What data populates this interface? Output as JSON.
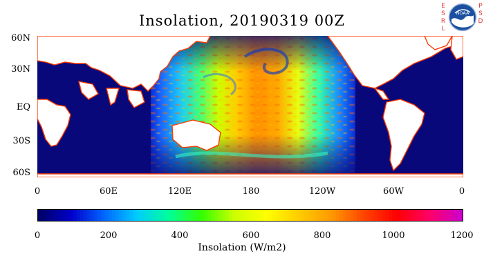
{
  "header": {
    "title": "Insolation, 20190319 00Z",
    "logo_left_letters": [
      "E",
      "S",
      "R",
      "L"
    ],
    "logo_right_letters": [
      "P",
      "S",
      "D"
    ],
    "logo_badge": "NOAA"
  },
  "map": {
    "lat_labels": [
      "60N",
      "30N",
      "EQ",
      "30S",
      "60S"
    ],
    "lon_labels": [
      "0",
      "60E",
      "120E",
      "180",
      "120W",
      "60W",
      "0"
    ],
    "data_coverage": "sunlit hemisphere centered near 180",
    "colors": {
      "ocean_night": "#08087a",
      "land": "#ffffff",
      "coast_outline": "#ff3a00"
    }
  },
  "colorbar": {
    "title": "Insolation (W/m2)",
    "tick_labels": [
      "0",
      "200",
      "400",
      "600",
      "800",
      "1000",
      "1200"
    ],
    "range": [
      0,
      1200
    ],
    "colors": [
      "#000066",
      "#0000cc",
      "#0066ff",
      "#00ccff",
      "#00ff99",
      "#33ff00",
      "#ccff00",
      "#ffff00",
      "#ffcc00",
      "#ff9900",
      "#ff4400",
      "#ff0000",
      "#ff0066",
      "#cc00cc"
    ]
  }
}
